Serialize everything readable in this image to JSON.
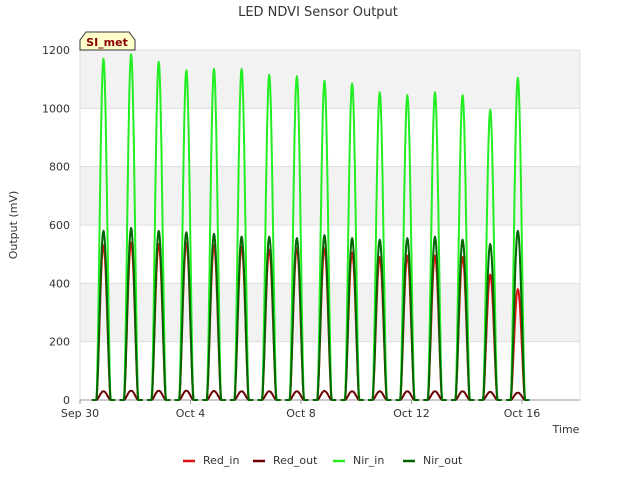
{
  "chart_data": {
    "type": "line",
    "title": "LED NDVI Sensor Output",
    "xlabel": "Time",
    "ylabel": "Output (mV)",
    "site_badge": "SI_met",
    "x_ticks": [
      "Sep 30",
      "Oct 4",
      "Oct 8",
      "Oct 12",
      "Oct 16"
    ],
    "x_tick_days": [
      0,
      4,
      8,
      12,
      16
    ],
    "xlim": [
      0,
      18.1
    ],
    "ylim": [
      0,
      1200
    ],
    "y_ticks": [
      0,
      200,
      400,
      600,
      800,
      1000,
      1200
    ],
    "grid": true,
    "legend_position": "bottom",
    "series": [
      {
        "name": "Red_in",
        "color": "#dd1111",
        "peak_days": [
          0.85,
          1.85,
          2.85,
          3.85,
          4.85,
          5.85,
          6.85,
          7.85,
          8.85,
          9.85,
          10.85,
          11.85,
          12.85,
          13.85,
          14.85,
          15.85
        ],
        "peaks": [
          530,
          540,
          535,
          540,
          530,
          525,
          515,
          520,
          520,
          505,
          490,
          495,
          495,
          490,
          430,
          380
        ]
      },
      {
        "name": "Red_out",
        "color": "#6b0000",
        "peak_days": [
          0.85,
          1.85,
          2.85,
          3.85,
          4.85,
          5.85,
          6.85,
          7.85,
          8.85,
          9.85,
          10.85,
          11.85,
          12.85,
          13.85,
          14.85,
          15.85
        ],
        "peaks": [
          30,
          32,
          32,
          32,
          31,
          30,
          30,
          30,
          31,
          30,
          30,
          30,
          30,
          30,
          28,
          25
        ]
      },
      {
        "name": "Nir_in",
        "color": "#22ee22",
        "peak_days": [
          0.85,
          1.85,
          2.85,
          3.85,
          4.85,
          5.85,
          6.85,
          7.85,
          8.85,
          9.85,
          10.85,
          11.85,
          12.85,
          13.85,
          14.85,
          15.85
        ],
        "peaks": [
          1170,
          1185,
          1160,
          1130,
          1135,
          1135,
          1115,
          1110,
          1095,
          1085,
          1055,
          1045,
          1055,
          1045,
          995,
          1105
        ]
      },
      {
        "name": "Nir_out",
        "color": "#006400",
        "peak_days": [
          0.85,
          1.85,
          2.85,
          3.85,
          4.85,
          5.85,
          6.85,
          7.85,
          8.85,
          9.85,
          10.85,
          11.85,
          12.85,
          13.85,
          14.85,
          15.85
        ],
        "peaks": [
          580,
          590,
          580,
          575,
          570,
          560,
          560,
          555,
          565,
          555,
          550,
          555,
          560,
          550,
          535,
          580
        ]
      }
    ]
  }
}
